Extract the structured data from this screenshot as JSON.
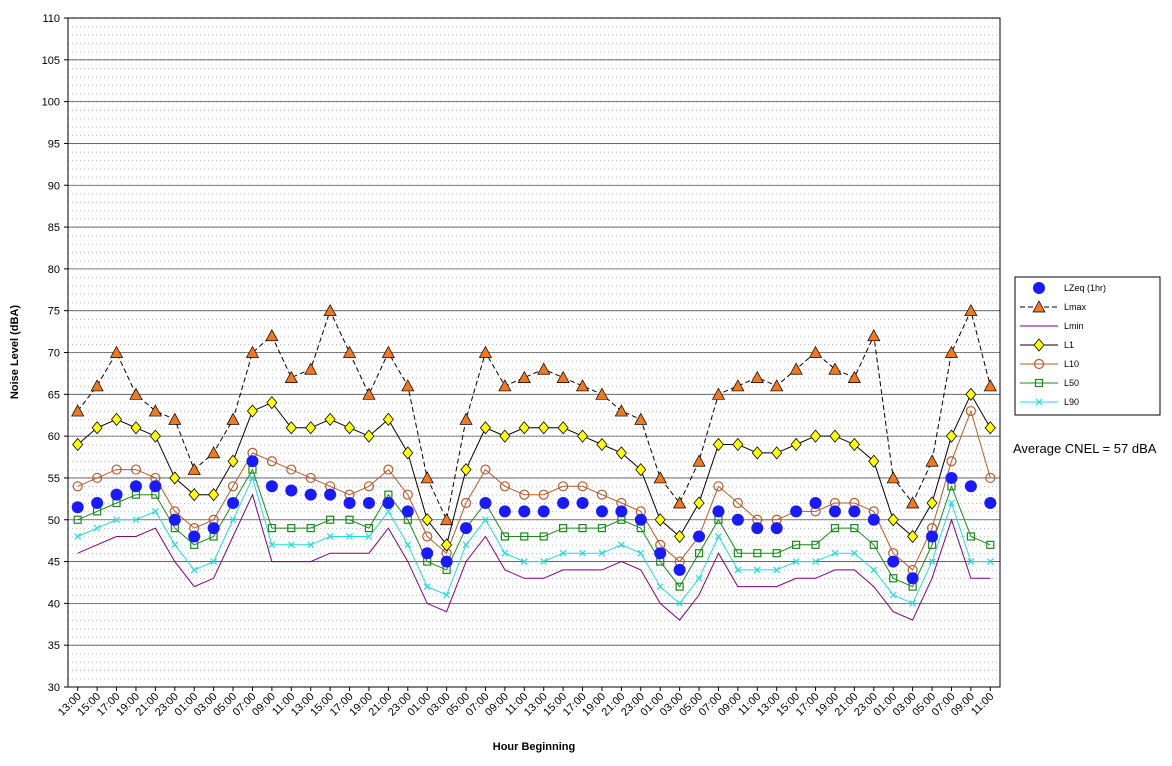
{
  "chart_data": {
    "type": "line",
    "y_label": "Noise Level (dBA)",
    "x_label": "Hour Beginning",
    "annotation": "Average CNEL = 57 dBA",
    "ylim": [
      30,
      110
    ],
    "yticks": [
      30,
      35,
      40,
      45,
      50,
      55,
      60,
      65,
      70,
      75,
      80,
      85,
      90,
      95,
      100,
      105,
      110
    ],
    "grid": true,
    "legend": "right",
    "categories": [
      "13:00",
      "15:00",
      "17:00",
      "19:00",
      "21:00",
      "23:00",
      "01:00",
      "03:00",
      "05:00",
      "07:00",
      "09:00",
      "11:00",
      "13:00",
      "15:00",
      "17:00",
      "19:00",
      "21:00",
      "23:00",
      "01:00",
      "03:00",
      "05:00",
      "07:00",
      "09:00",
      "11:00",
      "13:00",
      "15:00",
      "17:00",
      "19:00",
      "21:00",
      "23:00",
      "01:00",
      "03:00",
      "05:00",
      "07:00",
      "09:00",
      "11:00",
      "13:00",
      "15:00",
      "17:00",
      "19:00",
      "21:00",
      "23:00",
      "01:00",
      "03:00",
      "05:00",
      "07:00",
      "09:00",
      "11:00"
    ],
    "series": [
      {
        "name": "LZeq (1hr)",
        "color": "#1a1aff",
        "marker": "circle",
        "line": "none",
        "values": [
          51.5,
          52,
          53,
          54,
          54,
          50,
          48,
          49,
          52,
          57,
          54,
          53.5,
          53,
          53,
          52,
          52,
          52,
          51,
          46,
          45,
          49,
          52,
          51,
          51,
          51,
          52,
          52,
          51,
          51,
          50,
          46,
          44,
          48,
          51,
          50,
          49,
          49,
          51,
          52,
          51,
          51,
          50,
          45,
          43,
          48,
          55,
          54,
          52
        ]
      },
      {
        "name": "Lmax",
        "color": "#f07820",
        "marker": "triangle",
        "line": "dashed",
        "values": [
          63,
          66,
          70,
          65,
          63,
          62,
          56,
          58,
          62,
          70,
          72,
          67,
          68,
          75,
          70,
          65,
          70,
          66,
          55,
          50,
          62,
          70,
          66,
          67,
          68,
          67,
          66,
          65,
          63,
          62,
          55,
          52,
          57,
          65,
          66,
          67,
          66,
          68,
          70,
          68,
          67,
          72,
          55,
          52,
          57,
          70,
          75,
          66
        ]
      },
      {
        "name": "Lmin",
        "color": "#800080",
        "marker": "none",
        "line": "solid",
        "values": [
          46,
          47,
          48,
          48,
          49,
          45,
          42,
          43,
          48,
          53,
          45,
          45,
          45,
          46,
          46,
          46,
          49,
          45,
          40,
          39,
          45,
          48,
          44,
          43,
          43,
          44,
          44,
          44,
          45,
          44,
          40,
          38,
          41,
          46,
          42,
          42,
          42,
          43,
          43,
          44,
          44,
          42,
          39,
          38,
          43,
          50,
          43,
          43
        ]
      },
      {
        "name": "L1",
        "color": "#ffff00",
        "marker": "diamond",
        "line": "solid",
        "values": [
          59,
          61,
          62,
          61,
          60,
          55,
          53,
          53,
          57,
          63,
          64,
          61,
          61,
          62,
          61,
          60,
          62,
          58,
          50,
          47,
          56,
          61,
          60,
          61,
          61,
          61,
          60,
          59,
          58,
          56,
          50,
          48,
          52,
          59,
          59,
          58,
          58,
          59,
          60,
          60,
          59,
          57,
          50,
          48,
          52,
          60,
          65,
          61
        ]
      },
      {
        "name": "L10",
        "color": "#b85a2a",
        "marker": "ring",
        "line": "solid",
        "values": [
          54,
          55,
          56,
          56,
          55,
          51,
          49,
          50,
          54,
          58,
          57,
          56,
          55,
          54,
          53,
          54,
          56,
          53,
          48,
          46,
          52,
          56,
          54,
          53,
          53,
          54,
          54,
          53,
          52,
          51,
          47,
          45,
          48,
          54,
          52,
          50,
          50,
          51,
          51,
          52,
          52,
          51,
          46,
          44,
          49,
          57,
          63,
          55
        ]
      },
      {
        "name": "L50",
        "color": "#1a8a1a",
        "marker": "square",
        "line": "solid",
        "values": [
          50,
          51,
          52,
          53,
          53,
          49,
          47,
          48,
          52,
          56,
          49,
          49,
          49,
          50,
          50,
          49,
          53,
          50,
          45,
          44,
          49,
          52,
          48,
          48,
          48,
          49,
          49,
          49,
          50,
          49,
          45,
          42,
          46,
          50,
          46,
          46,
          46,
          47,
          47,
          49,
          49,
          47,
          43,
          42,
          47,
          54,
          48,
          47
        ]
      },
      {
        "name": "L90",
        "color": "#22dddd",
        "marker": "cross",
        "line": "solid",
        "values": [
          48,
          49,
          50,
          50,
          51,
          47,
          44,
          45,
          50,
          55,
          47,
          47,
          47,
          48,
          48,
          48,
          51,
          47,
          42,
          41,
          47,
          50,
          46,
          45,
          45,
          46,
          46,
          46,
          47,
          46,
          42,
          40,
          43,
          48,
          44,
          44,
          44,
          45,
          45,
          46,
          46,
          44,
          41,
          40,
          45,
          52,
          45,
          45
        ]
      }
    ]
  }
}
